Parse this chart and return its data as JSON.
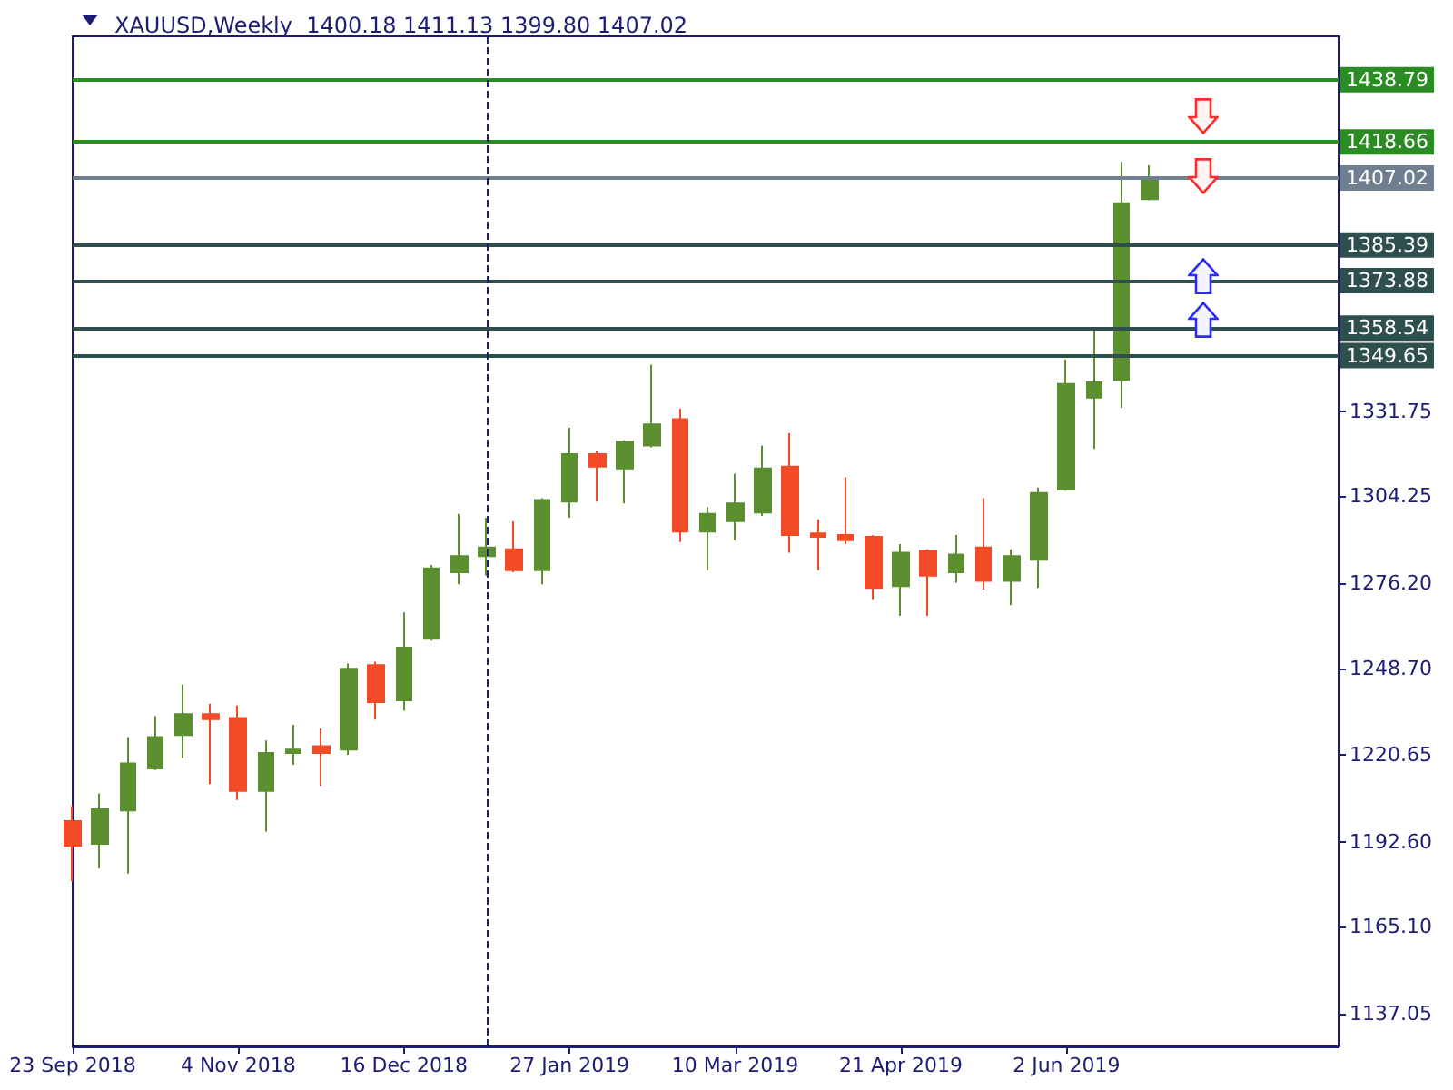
{
  "chart_data": {
    "type": "candlestick",
    "title": "XAUUSD,Weekly  1400.18 1411.13 1399.80 1407.02",
    "x": [
      "2018-09-23",
      "2018-09-30",
      "2018-10-07",
      "2018-10-14",
      "2018-10-21",
      "2018-10-28",
      "2018-11-04",
      "2018-11-11",
      "2018-11-18",
      "2018-11-25",
      "2018-12-02",
      "2018-12-09",
      "2018-12-16",
      "2018-12-23",
      "2018-12-30",
      "2019-01-06",
      "2019-01-13",
      "2019-01-20",
      "2019-01-27",
      "2019-02-03",
      "2019-02-10",
      "2019-02-17",
      "2019-02-24",
      "2019-03-03",
      "2019-03-10",
      "2019-03-17",
      "2019-03-24",
      "2019-03-31",
      "2019-04-07",
      "2019-04-14",
      "2019-04-21",
      "2019-04-28",
      "2019-05-05",
      "2019-05-12",
      "2019-05-19",
      "2019-05-26",
      "2019-06-02",
      "2019-06-09",
      "2019-06-16",
      "2019-06-23"
    ],
    "ohlc": [
      [
        1199.3,
        1204.2,
        1180.0,
        1191.3
      ],
      [
        1191.9,
        1208.2,
        1184.0,
        1203.1
      ],
      [
        1202.7,
        1226.4,
        1182.3,
        1217.9
      ],
      [
        1216.3,
        1233.2,
        1215.8,
        1226.4
      ],
      [
        1227.1,
        1243.4,
        1219.7,
        1233.8
      ],
      [
        1233.8,
        1237.2,
        1211.2,
        1232.2
      ],
      [
        1232.6,
        1236.6,
        1206.1,
        1209.0
      ],
      [
        1209.0,
        1225.3,
        1195.9,
        1221.3
      ],
      [
        1221.3,
        1230.4,
        1217.5,
        1222.4
      ],
      [
        1223.5,
        1229.2,
        1210.7,
        1221.3
      ],
      [
        1222.4,
        1250.2,
        1220.7,
        1248.5
      ],
      [
        1249.7,
        1250.8,
        1232.1,
        1237.7
      ],
      [
        1238.3,
        1266.7,
        1234.9,
        1255.3
      ],
      [
        1258.2,
        1282.0,
        1257.6,
        1280.9
      ],
      [
        1279.7,
        1298.5,
        1275.8,
        1284.9
      ],
      [
        1284.9,
        1297.3,
        1278.6,
        1287.7
      ],
      [
        1287.1,
        1296.2,
        1279.7,
        1280.3
      ],
      [
        1280.3,
        1303.6,
        1275.8,
        1303.0
      ],
      [
        1302.5,
        1326.3,
        1297.3,
        1317.8
      ],
      [
        1317.8,
        1318.9,
        1302.5,
        1313.8
      ],
      [
        1313.2,
        1322.3,
        1301.9,
        1321.8
      ],
      [
        1320.6,
        1346.7,
        1320.0,
        1327.4
      ],
      [
        1329.1,
        1332.5,
        1289.4,
        1292.8
      ],
      [
        1292.8,
        1300.7,
        1280.3,
        1298.5
      ],
      [
        1296.2,
        1311.5,
        1290.0,
        1301.9
      ],
      [
        1299.0,
        1320.6,
        1297.9,
        1313.2
      ],
      [
        1313.8,
        1324.6,
        1286.0,
        1291.7
      ],
      [
        1292.2,
        1296.8,
        1280.3,
        1291.1
      ],
      [
        1291.7,
        1310.4,
        1288.8,
        1290.0
      ],
      [
        1291.1,
        1291.6,
        1270.7,
        1274.6
      ],
      [
        1275.2,
        1288.8,
        1265.6,
        1286.0
      ],
      [
        1286.6,
        1287.1,
        1265.6,
        1278.6
      ],
      [
        1279.7,
        1291.7,
        1276.3,
        1285.4
      ],
      [
        1287.7,
        1303.6,
        1274.1,
        1276.9
      ],
      [
        1276.9,
        1287.1,
        1269.0,
        1284.9
      ],
      [
        1283.7,
        1307.0,
        1274.6,
        1305.3
      ],
      [
        1306.4,
        1348.4,
        1305.9,
        1340.5
      ],
      [
        1336.1,
        1358.2,
        1319.5,
        1341.0
      ],
      [
        1341.8,
        1412.2,
        1332.7,
        1398.9
      ],
      [
        1400.18,
        1411.13,
        1399.8,
        1407.02
      ]
    ],
    "colors": [
      "#f24b26",
      "#5b8f2f",
      "#5b8f2f",
      "#5b8f2f",
      "#5b8f2f",
      "#f24b26",
      "#f24b26",
      "#5b8f2f",
      "#5b8f2f",
      "#f24b26",
      "#5b8f2f",
      "#f24b26",
      "#5b8f2f",
      "#5b8f2f",
      "#5b8f2f",
      "#5b8f2f",
      "#f24b26",
      "#5b8f2f",
      "#5b8f2f",
      "#f24b26",
      "#5b8f2f",
      "#5b8f2f",
      "#f24b26",
      "#5b8f2f",
      "#5b8f2f",
      "#5b8f2f",
      "#f24b26",
      "#f24b26",
      "#f24b26",
      "#f24b26",
      "#5b8f2f",
      "#f24b26",
      "#5b8f2f",
      "#f24b26",
      "#5b8f2f",
      "#5b8f2f",
      "#5b8f2f",
      "#5b8f2f",
      "#5b8f2f",
      "#5b8f2f"
    ],
    "xlim": [
      "2018-09-23",
      "2019-08-10"
    ],
    "xticks": [
      {
        "value": "2018-09-23",
        "label": "23 Sep 2018"
      },
      {
        "value": "2018-11-04",
        "label": "4 Nov 2018"
      },
      {
        "value": "2018-12-16",
        "label": "16 Dec 2018"
      },
      {
        "value": "2019-01-27",
        "label": "27 Jan 2019"
      },
      {
        "value": "2019-03-10",
        "label": "10 Mar 2019"
      },
      {
        "value": "2019-04-21",
        "label": "21 Apr 2019"
      },
      {
        "value": "2019-06-02",
        "label": "2 Jun 2019"
      }
    ],
    "ylim": [
      1126.5,
      1452.8
    ],
    "yticks": [
      1137.05,
      {
        "value": 1165.1,
        "label": "1165.10"
      },
      {
        "value": 1192.6,
        "label": "1192.60"
      },
      1220.65,
      {
        "value": 1248.7,
        "label": "1248.70"
      },
      {
        "value": 1276.2,
        "label": "1276.20"
      },
      1304.25,
      1331.75
    ],
    "ref_lines": [
      {
        "axis": "y",
        "value": 1438.79,
        "label": "1438.79",
        "color": "#2a8c22"
      },
      {
        "axis": "y",
        "value": 1418.66,
        "label": "1418.66",
        "color": "#2a8c22"
      },
      {
        "axis": "y",
        "value": 1407.02,
        "label": "1407.02",
        "color": "#6f7f8f"
      },
      {
        "axis": "y",
        "value": 1385.39,
        "label": "1385.39",
        "color": "#2f4f4f"
      },
      {
        "axis": "y",
        "value": 1373.88,
        "label": "1373.88",
        "color": "#2f4f4f"
      },
      {
        "axis": "y",
        "value": 1358.54,
        "label": "1358.54",
        "color": "#2f4f4f"
      },
      {
        "axis": "y",
        "value": 1349.65,
        "label": "1349.65",
        "color": "#2f4f4f"
      },
      {
        "axis": "x",
        "value": "2019-01-06",
        "color": "#1c1c72",
        "line_style": "dashed"
      }
    ]
  }
}
